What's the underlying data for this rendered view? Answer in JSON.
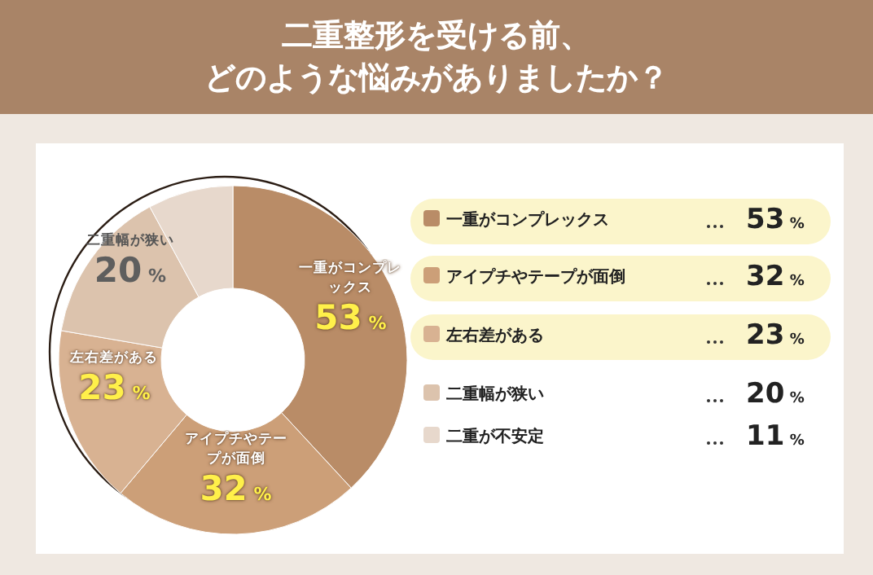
{
  "chart_data": {
    "type": "donut",
    "title": "二重整形を受ける前、どのような悩みがありましたか？",
    "categories": [
      "一重がコンプレックス",
      "アイプチやテープが面倒",
      "左右差がある",
      "二重幅が狭い",
      "二重が不安定"
    ],
    "values": [
      53,
      32,
      23,
      20,
      11
    ],
    "value_labels": [
      "53 %",
      "32 %",
      "23 %",
      "20 %",
      "11 %"
    ],
    "colors": [
      "#b98c67",
      "#cc9f78",
      "#d8b292",
      "#dcc3ad",
      "#e7d8cc"
    ],
    "legend": "right"
  }
}
